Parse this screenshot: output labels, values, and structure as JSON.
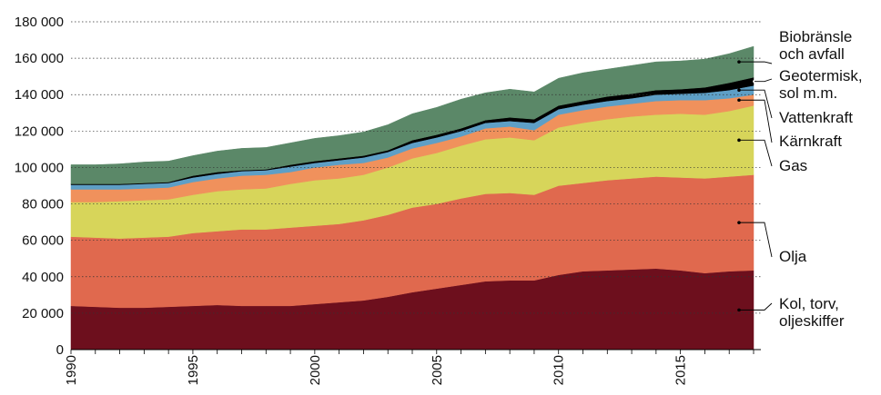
{
  "chart_data": {
    "type": "stacked-area",
    "x": [
      1990,
      1991,
      1992,
      1993,
      1994,
      1995,
      1996,
      1997,
      1998,
      1999,
      2000,
      2001,
      2002,
      2003,
      2004,
      2005,
      2006,
      2007,
      2008,
      2009,
      2010,
      2011,
      2012,
      2013,
      2014,
      2015,
      2016,
      2017,
      2018
    ],
    "xlim": [
      1990,
      2018
    ],
    "xticks": [
      1990,
      1995,
      2000,
      2005,
      2010,
      2015
    ],
    "ylim": [
      0,
      180000
    ],
    "yticks": [
      0,
      {
        "value": 20000,
        "label": "20 000"
      },
      {
        "value": 40000,
        "label": "40 000"
      },
      {
        "value": 60000,
        "label": "60 000"
      },
      {
        "value": 80000,
        "label": "80 000"
      },
      {
        "value": 100000,
        "label": "100 000"
      },
      {
        "value": 120000,
        "label": "120 000"
      },
      {
        "value": 140000,
        "label": "140 000"
      },
      {
        "value": 160000,
        "label": "160 000"
      },
      {
        "value": 180000,
        "label": "180 000"
      }
    ],
    "grid": true,
    "series": [
      {
        "name": "Kol, torv, oljeskiffer",
        "color": "#6d0f1d",
        "values": [
          24000,
          23500,
          23000,
          23000,
          23500,
          24000,
          24500,
          24000,
          24000,
          24000,
          25000,
          26000,
          27000,
          29000,
          31500,
          33500,
          35500,
          37500,
          38000,
          38000,
          41000,
          43000,
          43500,
          44000,
          44500,
          43500,
          42000,
          43000,
          43500
        ]
      },
      {
        "name": "Olja",
        "color": "#e0694e",
        "values": [
          38000,
          38000,
          38000,
          38500,
          38500,
          40000,
          40500,
          42000,
          42000,
          43000,
          43000,
          43000,
          44000,
          45000,
          46500,
          46500,
          47500,
          48000,
          48000,
          47000,
          49000,
          48500,
          49500,
          50000,
          50500,
          51000,
          52000,
          52000,
          52500
        ]
      },
      {
        "name": "Gas",
        "color": "#d7d55a",
        "values": [
          19000,
          19500,
          20500,
          20500,
          20500,
          21000,
          22000,
          22000,
          22500,
          24000,
          25000,
          25000,
          25000,
          26000,
          27000,
          28000,
          29000,
          30000,
          30500,
          30000,
          32000,
          33000,
          33500,
          34000,
          34000,
          35000,
          35000,
          36000,
          38000
        ]
      },
      {
        "name": "Kärnkraft",
        "color": "#f0915c",
        "values": [
          7000,
          7000,
          6500,
          6500,
          6500,
          7000,
          7000,
          7500,
          7500,
          6500,
          7000,
          7500,
          6500,
          5500,
          5500,
          5500,
          5000,
          6000,
          6000,
          5500,
          7000,
          7000,
          7000,
          7000,
          7500,
          7500,
          8000,
          7000,
          6000
        ]
      },
      {
        "name": "Vattenkraft",
        "color": "#5e9fc6",
        "values": [
          2500,
          2500,
          2500,
          2500,
          2500,
          2500,
          2500,
          2500,
          2500,
          3000,
          2500,
          2500,
          3000,
          3000,
          3000,
          3000,
          3000,
          3000,
          3000,
          4000,
          3000,
          3000,
          3000,
          3000,
          3500,
          3500,
          4000,
          4500,
          5000
        ]
      },
      {
        "name": "Geotermisk, sol m.m.",
        "color": "#000000",
        "values": [
          500,
          500,
          500,
          500,
          500,
          1000,
          1000,
          500,
          500,
          1000,
          1000,
          1000,
          1000,
          1000,
          1500,
          1500,
          1500,
          1500,
          2000,
          2000,
          2000,
          2000,
          2500,
          2500,
          2500,
          2500,
          3000,
          4000,
          4500
        ]
      },
      {
        "name": "Biobränsle och avfall",
        "color": "#5b8868",
        "values": [
          10500,
          10500,
          11000,
          11500,
          11500,
          11000,
          11500,
          12000,
          12000,
          12000,
          12500,
          12500,
          13000,
          14000,
          14500,
          15000,
          16000,
          15000,
          15500,
          15000,
          15000,
          15500,
          15000,
          15500,
          15500,
          15500,
          15500,
          16000,
          17000
        ]
      }
    ]
  }
}
